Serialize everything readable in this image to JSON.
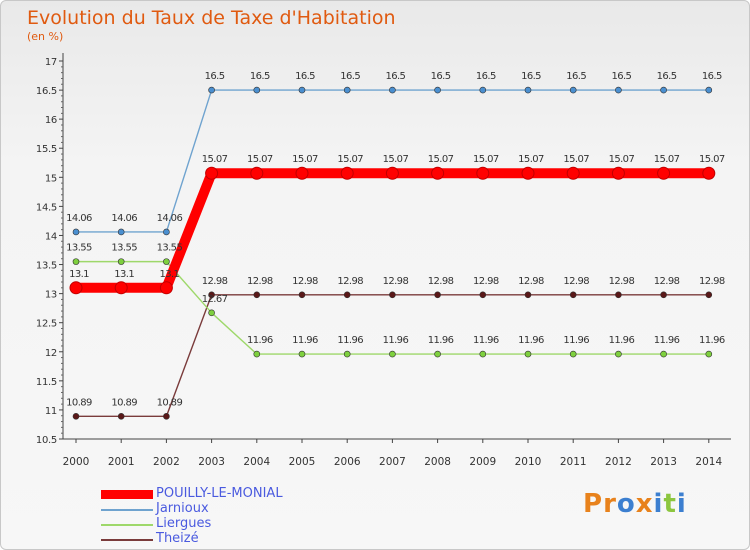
{
  "page": {
    "title": "Evolution du Taux de Taxe d'Habitation",
    "subtitle": "(en %)"
  },
  "logo": {
    "text": "Proxiti",
    "colors": [
      "#e8821c",
      "#e8821c",
      "#3c7fd0",
      "#e8821c",
      "#3c7fd0",
      "#8cc63f",
      "#3c7fd0"
    ]
  },
  "chart_data": {
    "type": "line",
    "x": [
      "2000",
      "2001",
      "2002",
      "2003",
      "2004",
      "2005",
      "2006",
      "2007",
      "2008",
      "2009",
      "2010",
      "2011",
      "2012",
      "2013",
      "2014"
    ],
    "ylim": [
      10.5,
      17
    ],
    "yticks": [
      "10.5",
      "11",
      "11.5",
      "12",
      "12.5",
      "13",
      "13.5",
      "14",
      "14.5",
      "15",
      "15.5",
      "16",
      "16.5",
      "17"
    ],
    "grid": false,
    "legend_position": "bottom-left",
    "series": [
      {
        "name": "POUILLY-LE-MONIAL",
        "color": "#ff0000",
        "marker_color": "#ff0000",
        "values": [
          13.1,
          13.1,
          13.1,
          15.07,
          15.07,
          15.07,
          15.07,
          15.07,
          15.07,
          15.07,
          15.07,
          15.07,
          15.07,
          15.07,
          15.07
        ],
        "labels": [
          "13.1",
          "13.1",
          "13.1",
          "15.07",
          "15.07",
          "15.07",
          "15.07",
          "15.07",
          "15.07",
          "15.07",
          "15.07",
          "15.07",
          "15.07",
          "15.07",
          "15.07"
        ]
      },
      {
        "name": "Jarnioux",
        "color": "#6fa3cf",
        "marker_color": "#4a8fd0",
        "values": [
          14.06,
          14.06,
          14.06,
          16.5,
          16.5,
          16.5,
          16.5,
          16.5,
          16.5,
          16.5,
          16.5,
          16.5,
          16.5,
          16.5,
          16.5
        ],
        "labels": [
          "14.06",
          "14.06",
          "14.06",
          "16.5",
          "16.5",
          "16.5",
          "16.5",
          "16.5",
          "16.5",
          "16.5",
          "16.5",
          "16.5",
          "16.5",
          "16.5",
          "16.5"
        ]
      },
      {
        "name": "Liergues",
        "color": "#9ed86a",
        "marker_color": "#7ed03e",
        "values": [
          13.55,
          13.55,
          13.55,
          12.67,
          11.96,
          11.96,
          11.96,
          11.96,
          11.96,
          11.96,
          11.96,
          11.96,
          11.96,
          11.96,
          11.96
        ],
        "labels": [
          "13.55",
          "13.55",
          "13.55",
          "12.67",
          "11.96",
          "11.96",
          "11.96",
          "11.96",
          "11.96",
          "11.96",
          "11.96",
          "11.96",
          "11.96",
          "11.96",
          "11.96"
        ]
      },
      {
        "name": "Theizé",
        "color": "#7a3b3b",
        "marker_color": "#5a1818",
        "values": [
          10.89,
          10.89,
          10.89,
          12.98,
          12.98,
          12.98,
          12.98,
          12.98,
          12.98,
          12.98,
          12.98,
          12.98,
          12.98,
          12.98,
          12.98
        ],
        "labels": [
          "10.89",
          "10.89",
          "10.89",
          "12.98",
          "12.98",
          "12.98",
          "12.98",
          "12.98",
          "12.98",
          "12.98",
          "12.98",
          "12.98",
          "12.98",
          "12.98",
          "12.98"
        ]
      }
    ]
  }
}
